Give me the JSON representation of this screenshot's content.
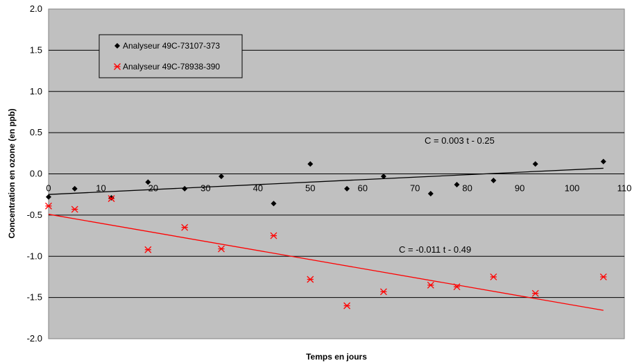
{
  "chart_data": {
    "type": "scatter",
    "xlabel": "Temps en jours",
    "ylabel": "Concentration en ozone (en ppb)",
    "xlim": [
      0,
      110
    ],
    "ylim": [
      -2.0,
      2.0
    ],
    "x_ticks": [
      "0",
      "10",
      "20",
      "30",
      "40",
      "50",
      "60",
      "70",
      "80",
      "90",
      "100",
      "110"
    ],
    "y_ticks": [
      "2.0",
      "1.5",
      "1.0",
      "0.5",
      "0.0",
      "-0.5",
      "-1.0",
      "-1.5",
      "-2.0"
    ],
    "grid": "horizontal",
    "plot_background": "#c0c0c0",
    "legend_position": "top-left",
    "series": [
      {
        "name": "Analyseur 49C-73107-373",
        "marker": "diamond",
        "color": "#000000",
        "x": [
          0,
          5,
          12,
          19,
          26,
          33,
          43,
          50,
          57,
          64,
          73,
          78,
          85,
          93,
          106
        ],
        "y": [
          -0.28,
          -0.18,
          -0.29,
          -0.1,
          -0.18,
          -0.03,
          -0.36,
          0.12,
          -0.18,
          -0.03,
          -0.24,
          -0.13,
          -0.08,
          0.12,
          0.15
        ],
        "trendline": {
          "slope": 0.003,
          "intercept": -0.25,
          "x_range": [
            0,
            106
          ],
          "label": "C = 0.003 t - 0.25"
        }
      },
      {
        "name": "Analyseur 49C-78938-390",
        "marker": "asterisk",
        "color": "#ff0000",
        "x": [
          0,
          5,
          12,
          19,
          26,
          33,
          43,
          50,
          57,
          64,
          73,
          78,
          85,
          93,
          106
        ],
        "y": [
          -0.39,
          -0.43,
          -0.3,
          -0.92,
          -0.65,
          -0.91,
          -0.75,
          -1.28,
          -1.6,
          -1.43,
          -1.35,
          -1.37,
          -1.25,
          -1.45,
          -1.25
        ],
        "trendline": {
          "slope": -0.011,
          "intercept": -0.49,
          "x_range": [
            0,
            106
          ],
          "label": "C = -0.011 t - 0.49"
        }
      }
    ]
  }
}
